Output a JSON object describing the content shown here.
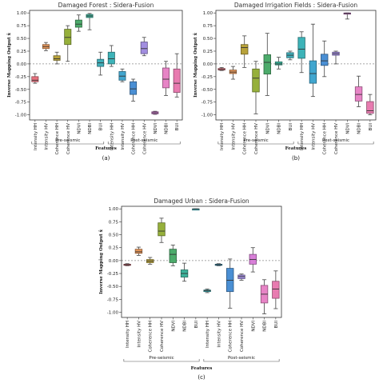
{
  "chart_data": [
    {
      "type": "box",
      "title": "Damaged Forest : Sidera-Fusion",
      "panel_label": "(a)",
      "ylabel": "Inverse Mapping Output x̂",
      "xlabel": "Features",
      "ylim": [
        -1.1,
        1.05
      ],
      "yticks": [
        -1.0,
        -0.75,
        -0.5,
        -0.25,
        0.0,
        0.25,
        0.5,
        0.75,
        1.0
      ],
      "reference_line": 0,
      "groups": [
        "Pre-seismic",
        "Post-seismic"
      ],
      "categories": [
        "Intensity HH",
        "Intensity HV",
        "Coherence HH",
        "Coherence HV",
        "NDVI",
        "NDBI",
        "BUI",
        "Intensity HH",
        "Intensity HV",
        "Coherence HH",
        "Coherence HV",
        "NDVI",
        "NDBI",
        "BUI"
      ],
      "colors": [
        "#e8727f",
        "#e5965a",
        "#b8a23a",
        "#96b03b",
        "#4cab6b",
        "#3db39b",
        "#40aeba",
        "#3db3b8",
        "#41a6cf",
        "#4a8fd4",
        "#a28ee0",
        "#d87fd8",
        "#e784c6",
        "#e87bb0"
      ],
      "boxes": [
        {
          "min": -0.38,
          "q1": -0.35,
          "median": -0.32,
          "q3": -0.25,
          "max": -0.19
        },
        {
          "min": 0.26,
          "q1": 0.3,
          "median": 0.34,
          "q3": 0.38,
          "max": 0.42
        },
        {
          "min": 0.0,
          "q1": 0.07,
          "median": 0.1,
          "q3": 0.16,
          "max": 0.23
        },
        {
          "min": 0.05,
          "q1": 0.38,
          "median": 0.52,
          "q3": 0.68,
          "max": 0.75
        },
        {
          "min": 0.64,
          "q1": 0.72,
          "median": 0.78,
          "q3": 0.86,
          "max": 0.96
        },
        {
          "min": 0.67,
          "q1": 0.91,
          "median": 0.94,
          "q3": 0.97,
          "max": 0.99
        },
        {
          "min": -0.22,
          "q1": -0.05,
          "median": 0.02,
          "q3": 0.09,
          "max": 0.23
        },
        {
          "min": -0.05,
          "q1": 0.0,
          "median": 0.1,
          "q3": 0.23,
          "max": 0.36
        },
        {
          "min": -0.35,
          "q1": -0.32,
          "median": -0.24,
          "q3": -0.15,
          "max": -0.1
        },
        {
          "min": -0.73,
          "q1": -0.6,
          "median": -0.49,
          "q3": -0.35,
          "max": -0.3
        },
        {
          "min": 0.16,
          "q1": 0.2,
          "median": 0.3,
          "q3": 0.43,
          "max": 0.52
        },
        {
          "min": -0.99,
          "q1": -0.98,
          "median": -0.96,
          "q3": -0.94,
          "max": -0.93
        },
        {
          "min": -0.62,
          "q1": -0.47,
          "median": -0.3,
          "q3": -0.08,
          "max": 0.05
        },
        {
          "min": -0.65,
          "q1": -0.56,
          "median": -0.38,
          "q3": -0.1,
          "max": 0.2
        }
      ]
    },
    {
      "type": "box",
      "title": "Damaged Irrigation Fields : Sidera-Fusion",
      "panel_label": "(b)",
      "ylabel": "Inverse Mapping Output x̂",
      "xlabel": "Features",
      "ylim": [
        -1.1,
        1.05
      ],
      "yticks": [
        -1.0,
        -0.75,
        -0.5,
        -0.25,
        0.0,
        0.25,
        0.5,
        0.75,
        1.0
      ],
      "reference_line": 0,
      "groups": [
        "Pre-seismic",
        "Post-seismic"
      ],
      "categories": [
        "Intensity HH",
        "Intensity HV",
        "Coherence HH",
        "Coherence HV",
        "NDVI",
        "NDBI",
        "BUI",
        "Intensity HH",
        "Intensity HV",
        "Coherence HH",
        "Coherence HV",
        "NDVI",
        "NDBI",
        "BUI"
      ],
      "colors": [
        "#e8727f",
        "#e5965a",
        "#b8a23a",
        "#96b03b",
        "#4cab6b",
        "#3db39b",
        "#40aeba",
        "#3db3b8",
        "#41a6cf",
        "#4a8fd4",
        "#a28ee0",
        "#d87fd8",
        "#e784c6",
        "#e87bb0"
      ],
      "boxes": [
        {
          "min": -0.13,
          "q1": -0.12,
          "median": -0.11,
          "q3": -0.09,
          "max": -0.07
        },
        {
          "min": -0.3,
          "q1": -0.19,
          "median": -0.16,
          "q3": -0.12,
          "max": -0.05
        },
        {
          "min": -0.07,
          "q1": 0.19,
          "median": 0.32,
          "q3": 0.38,
          "max": 0.55
        },
        {
          "min": -0.98,
          "q1": -0.55,
          "median": -0.28,
          "q3": -0.1,
          "max": 0.05
        },
        {
          "min": -0.62,
          "q1": -0.2,
          "median": 0.03,
          "q3": 0.18,
          "max": 0.6
        },
        {
          "min": -0.1,
          "q1": -0.02,
          "median": 0.0,
          "q3": 0.04,
          "max": 0.13
        },
        {
          "min": 0.08,
          "q1": 0.12,
          "median": 0.17,
          "q3": 0.22,
          "max": 0.25
        },
        {
          "min": -0.17,
          "q1": 0.11,
          "median": 0.29,
          "q3": 0.52,
          "max": 0.63
        },
        {
          "min": -0.64,
          "q1": -0.38,
          "median": -0.19,
          "q3": 0.06,
          "max": 0.78
        },
        {
          "min": -0.25,
          "q1": -0.03,
          "median": 0.06,
          "q3": 0.19,
          "max": 0.45
        },
        {
          "min": 0.0,
          "q1": 0.17,
          "median": 0.2,
          "q3": 0.23,
          "max": 0.25
        },
        {
          "min": 0.88,
          "q1": 0.98,
          "median": 0.99,
          "q3": 1.0,
          "max": 1.0
        },
        {
          "min": -0.84,
          "q1": -0.73,
          "median": -0.6,
          "q3": -0.45,
          "max": -0.24
        },
        {
          "min": -1.0,
          "q1": -0.97,
          "median": -0.92,
          "q3": -0.74,
          "max": -0.6
        }
      ]
    },
    {
      "type": "box",
      "title": "Damaged Urban : Sidera-Fusion",
      "panel_label": "(c)",
      "ylabel": "Inverse Mapping Output x̂",
      "xlabel": "Features",
      "ylim": [
        -1.1,
        1.05
      ],
      "yticks": [
        -1.0,
        -0.75,
        -0.5,
        -0.25,
        0.0,
        0.25,
        0.5,
        0.75,
        1.0
      ],
      "reference_line": 0,
      "groups": [
        "Pre-seismic",
        "Post-seismic"
      ],
      "categories": [
        "Intensity HH",
        "Intensity HV",
        "Coherence HH",
        "Coherence HV",
        "NDVI",
        "NDBI",
        "BUI",
        "Intensity HH",
        "Intensity HV",
        "Coherence HH",
        "Coherence HV",
        "NDVI",
        "NDBI",
        "BUI"
      ],
      "colors": [
        "#e8727f",
        "#e5965a",
        "#b8a23a",
        "#96b03b",
        "#4cab6b",
        "#3db39b",
        "#40aeba",
        "#3db3b8",
        "#41a6cf",
        "#4a8fd4",
        "#a28ee0",
        "#d87fd8",
        "#e784c6",
        "#e87bb0"
      ],
      "boxes": [
        {
          "min": -0.1,
          "q1": -0.09,
          "median": -0.08,
          "q3": -0.07,
          "max": -0.06
        },
        {
          "min": 0.1,
          "q1": 0.14,
          "median": 0.17,
          "q3": 0.22,
          "max": 0.26
        },
        {
          "min": -0.07,
          "q1": -0.04,
          "median": -0.01,
          "q3": 0.02,
          "max": 0.06
        },
        {
          "min": 0.35,
          "q1": 0.48,
          "median": 0.57,
          "q3": 0.73,
          "max": 0.82
        },
        {
          "min": -0.1,
          "q1": -0.04,
          "median": 0.12,
          "q3": 0.22,
          "max": 0.3
        },
        {
          "min": -0.4,
          "q1": -0.32,
          "median": -0.25,
          "q3": -0.18,
          "max": -0.05
        },
        {
          "min": 1.0,
          "q1": 1.0,
          "median": 1.0,
          "q3": 1.0,
          "max": 1.0
        },
        {
          "min": -0.62,
          "q1": -0.6,
          "median": -0.58,
          "q3": -0.57,
          "max": -0.55
        },
        {
          "min": -0.1,
          "q1": -0.09,
          "median": -0.08,
          "q3": -0.07,
          "max": -0.06
        },
        {
          "min": -0.92,
          "q1": -0.6,
          "median": -0.38,
          "q3": -0.15,
          "max": 0.03
        },
        {
          "min": -0.38,
          "q1": -0.35,
          "median": -0.31,
          "q3": -0.28,
          "max": -0.26
        },
        {
          "min": -0.22,
          "q1": -0.07,
          "median": 0.02,
          "q3": 0.12,
          "max": 0.25
        },
        {
          "min": -1.03,
          "q1": -0.82,
          "median": -0.65,
          "q3": -0.48,
          "max": -0.37
        },
        {
          "min": -0.93,
          "q1": -0.73,
          "median": -0.55,
          "q3": -0.4,
          "max": -0.2
        }
      ]
    }
  ]
}
